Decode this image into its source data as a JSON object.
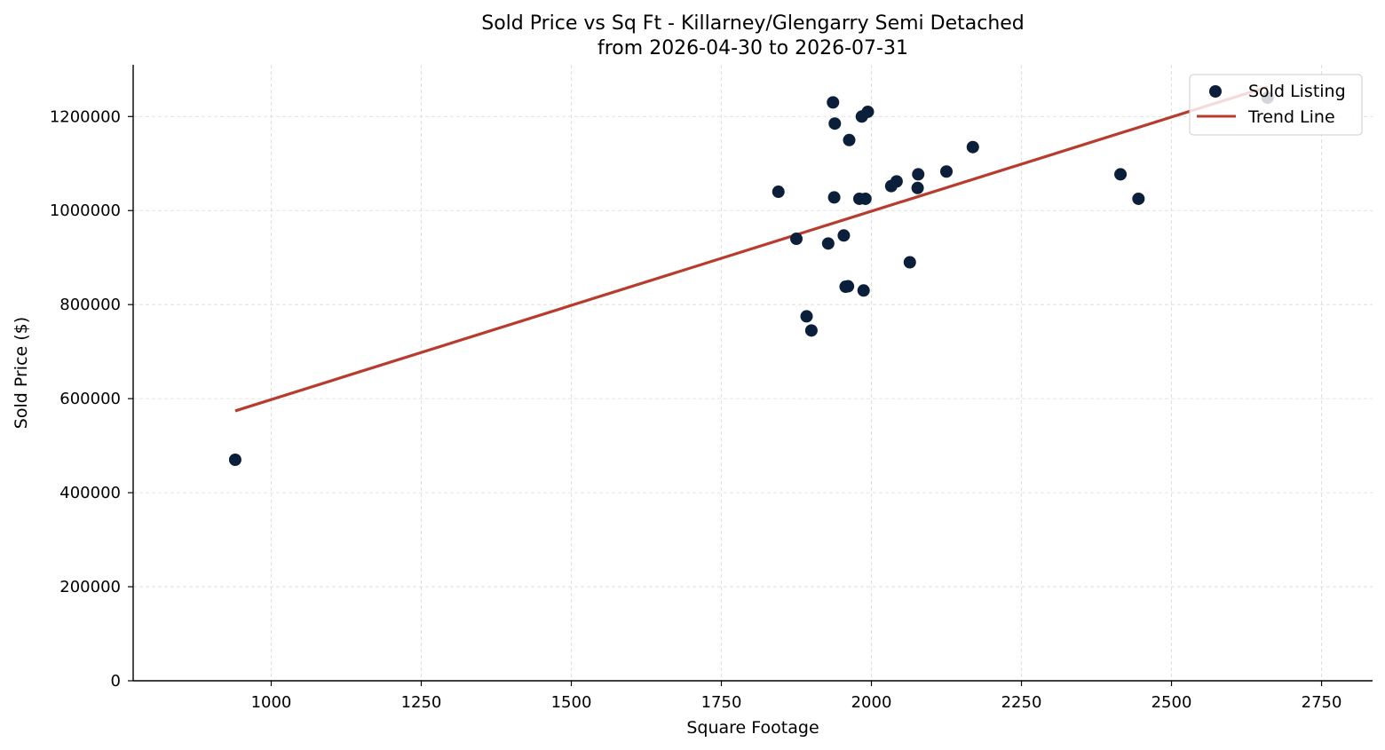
{
  "chart_data": {
    "type": "scatter",
    "title_line1": "Sold Price vs Sq Ft - Killarney/Glengarry Semi Detached",
    "title_line2": "from 2026-04-30 to 2026-07-31",
    "xlabel": "Square Footage",
    "ylabel": "Sold Price ($)",
    "xlim": [
      770,
      2835
    ],
    "ylim": [
      0,
      1310000
    ],
    "x_ticks": [
      1000,
      1250,
      1500,
      1750,
      2000,
      2250,
      2500,
      2750
    ],
    "y_ticks": [
      0,
      200000,
      400000,
      600000,
      800000,
      1000000,
      1200000
    ],
    "grid": true,
    "legend_position": "top-right",
    "series": [
      {
        "name": "Sold Listing",
        "color": "#0b1f3a",
        "points": [
          {
            "x": 940,
            "y": 470000
          },
          {
            "x": 1845,
            "y": 1040000
          },
          {
            "x": 1875,
            "y": 940000
          },
          {
            "x": 1892,
            "y": 775000
          },
          {
            "x": 1900,
            "y": 745000
          },
          {
            "x": 1928,
            "y": 930000
          },
          {
            "x": 1936,
            "y": 1230000
          },
          {
            "x": 1938,
            "y": 1028000
          },
          {
            "x": 1939,
            "y": 1185000
          },
          {
            "x": 1954,
            "y": 947000
          },
          {
            "x": 1957,
            "y": 838000
          },
          {
            "x": 1961,
            "y": 839000
          },
          {
            "x": 1963,
            "y": 1150000
          },
          {
            "x": 1980,
            "y": 1025000
          },
          {
            "x": 1984,
            "y": 1200000
          },
          {
            "x": 1987,
            "y": 830000
          },
          {
            "x": 1990,
            "y": 1025000
          },
          {
            "x": 1994,
            "y": 1210000
          },
          {
            "x": 2033,
            "y": 1052000
          },
          {
            "x": 2042,
            "y": 1062000
          },
          {
            "x": 2064,
            "y": 890000
          },
          {
            "x": 2077,
            "y": 1048000
          },
          {
            "x": 2078,
            "y": 1077000
          },
          {
            "x": 2125,
            "y": 1083000
          },
          {
            "x": 2169,
            "y": 1135000
          },
          {
            "x": 2415,
            "y": 1077000
          },
          {
            "x": 2445,
            "y": 1025000
          },
          {
            "x": 2660,
            "y": 1240000
          }
        ]
      },
      {
        "name": "Trend Line",
        "color": "#b83c2e",
        "line": [
          {
            "x": 940,
            "y": 574000
          },
          {
            "x": 2660,
            "y": 1263000
          }
        ]
      }
    ]
  }
}
